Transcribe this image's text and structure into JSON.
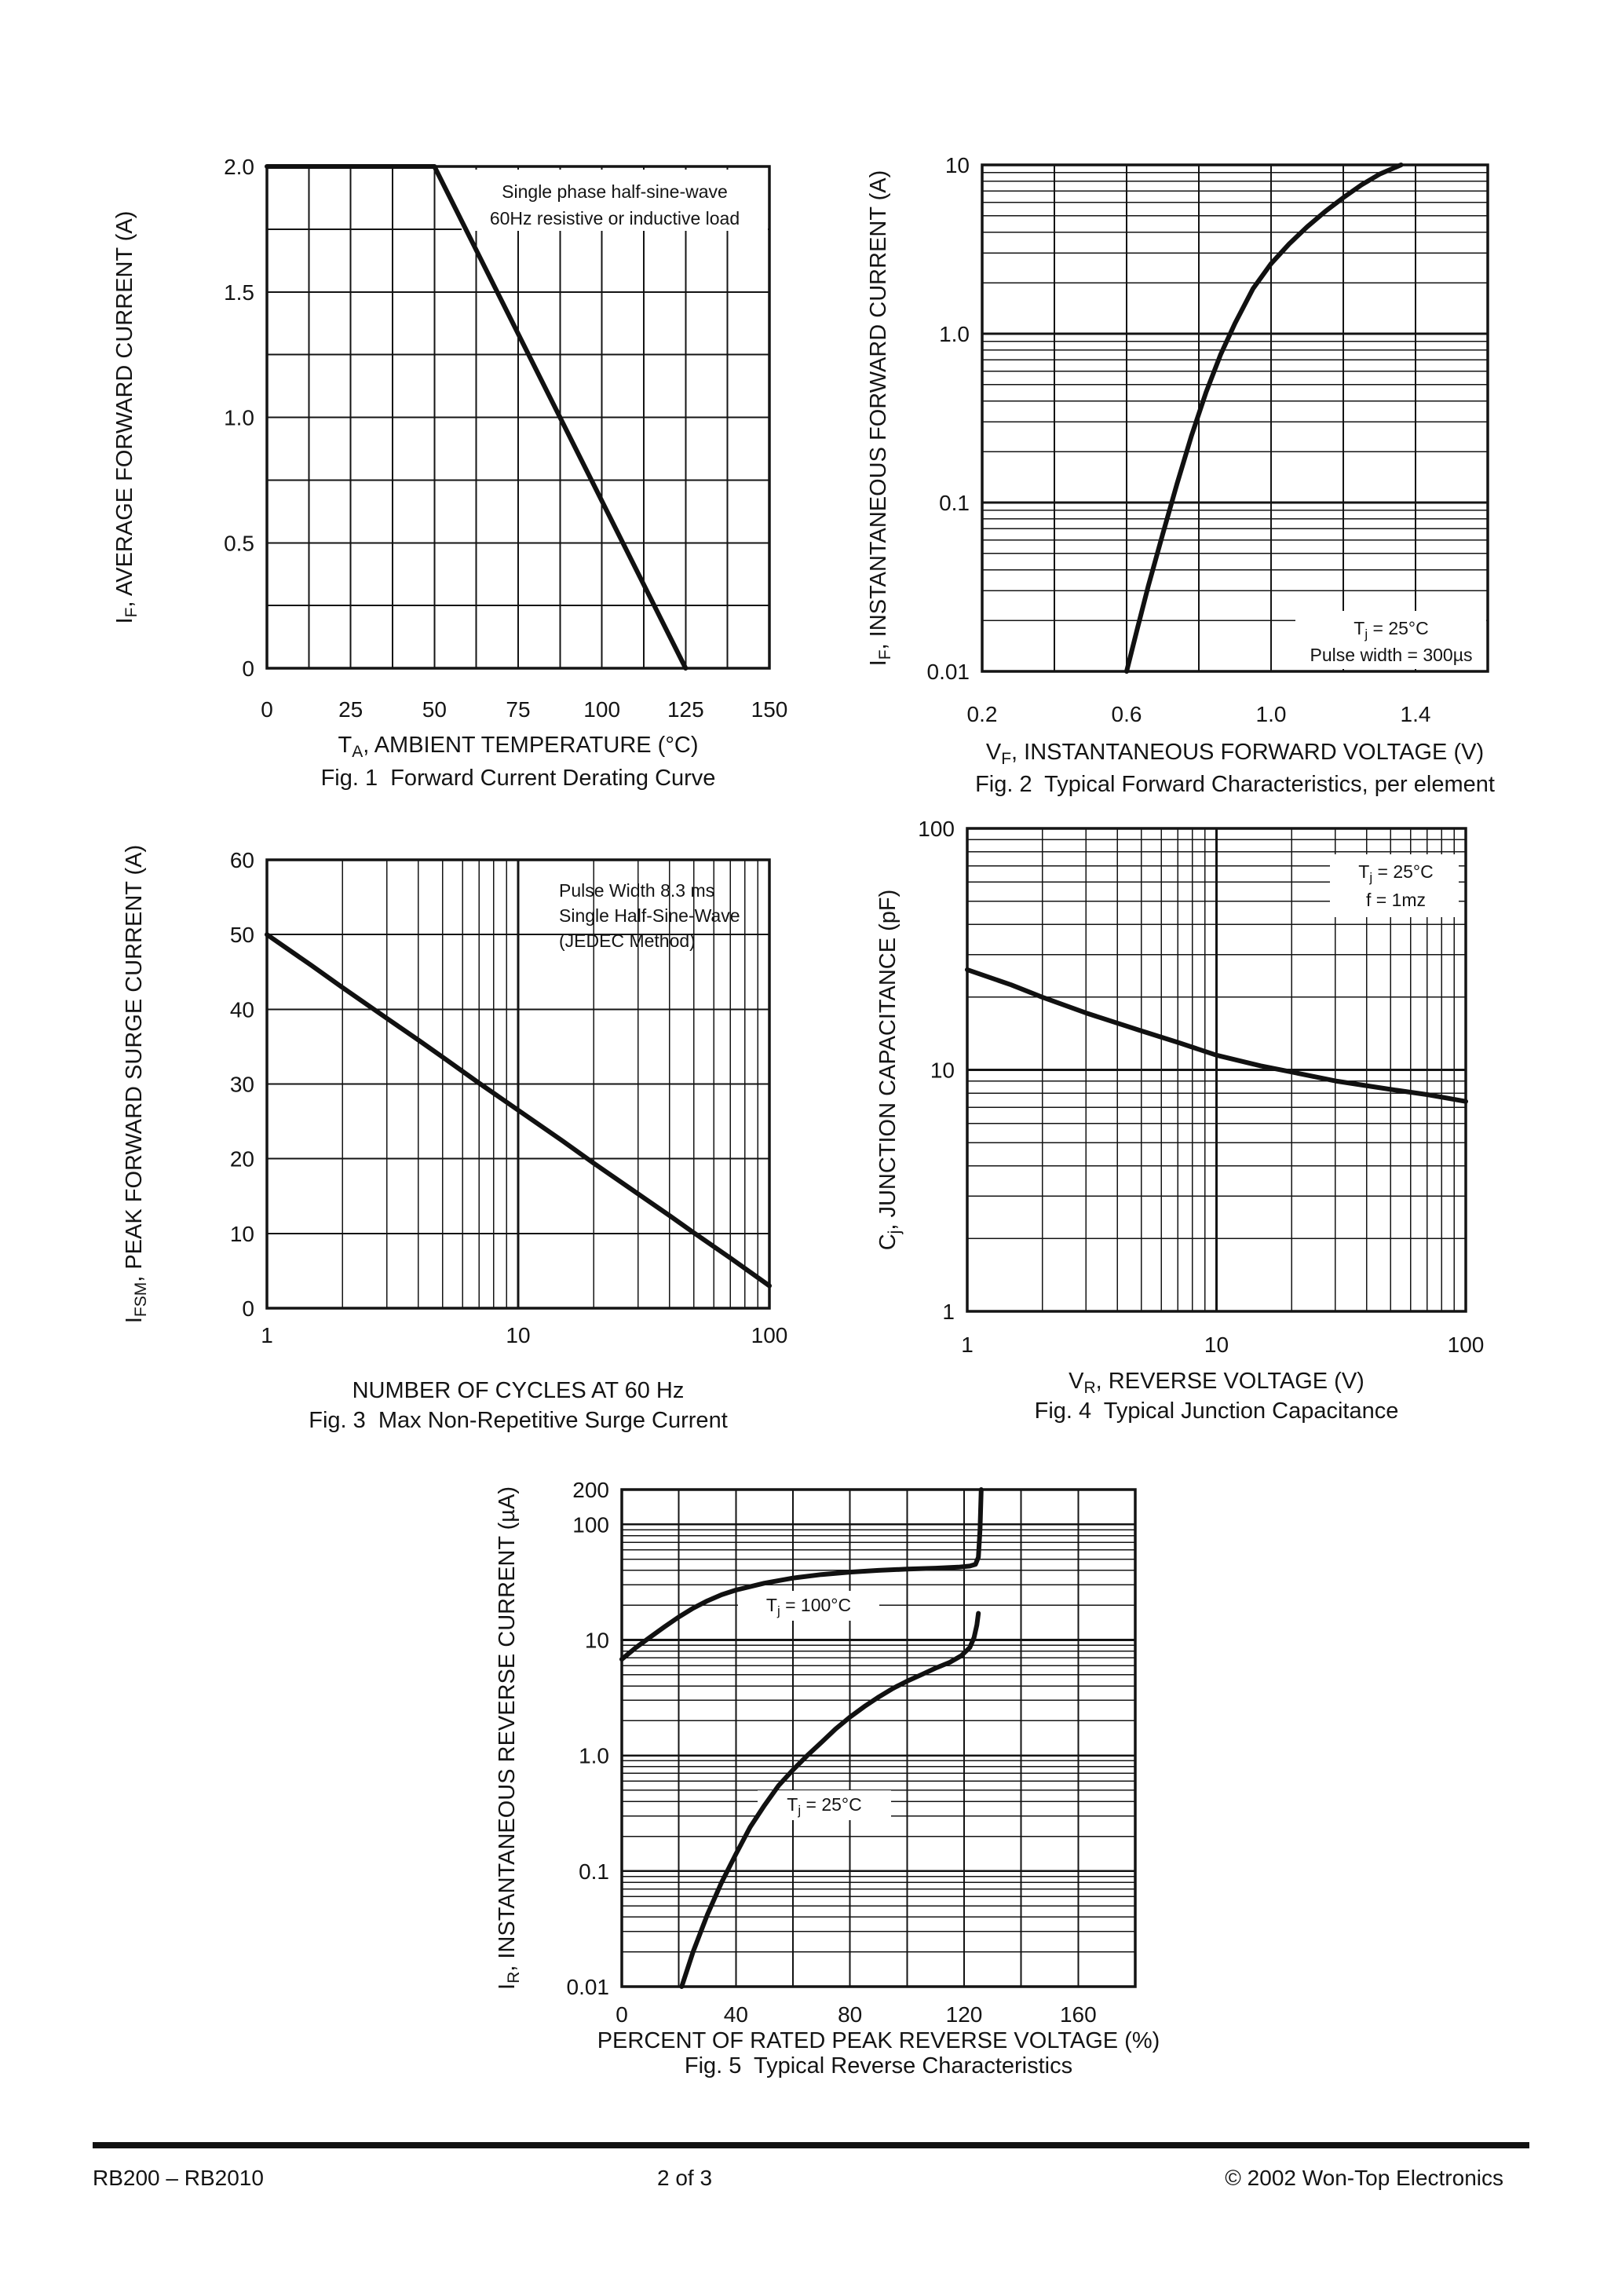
{
  "page": {
    "footer": {
      "left": "RB200 – RB2010",
      "center": "2 of 3",
      "right": "© 2002 Won-Top Electronics"
    }
  },
  "chart_data": [
    {
      "id": "fig1",
      "type": "line",
      "title": "Fig. 1  Forward Current Derating Curve",
      "xlabel": "T_{A}, AMBIENT TEMPERATURE (°C)",
      "ylabel": "I_{F}, AVERAGE FORWARD CURRENT (A)",
      "x": {
        "scale": "linear",
        "min": 0,
        "max": 150,
        "step": 12.5,
        "uniform": true,
        "ticks": [
          {
            "v": 0,
            "label": "0"
          },
          {
            "v": 25,
            "label": "25"
          },
          {
            "v": 50,
            "label": "50"
          },
          {
            "v": 75,
            "label": "75"
          },
          {
            "v": 100,
            "label": "100"
          },
          {
            "v": 125,
            "label": "125"
          },
          {
            "v": 150,
            "label": "150"
          }
        ]
      },
      "y": {
        "scale": "linear",
        "min": 0,
        "max": 2,
        "step": 0.25,
        "uniform": true,
        "ticks": [
          {
            "v": 2,
            "label": "2.0"
          },
          {
            "v": 1.5,
            "label": "1.5"
          },
          {
            "v": 1,
            "label": "1.0"
          },
          {
            "v": 0.5,
            "label": "0.5"
          },
          {
            "v": 0,
            "label": "0"
          }
        ]
      },
      "annotations": [
        {
          "lines": [
            "Single phase half-sine-wave",
            "60Hz resistive or inductive load"
          ]
        }
      ],
      "series": [
        {
          "name": "fig1-derating-curve",
          "points": [
            [
              0,
              2
            ],
            [
              50,
              2
            ],
            [
              125,
              0
            ]
          ]
        }
      ]
    },
    {
      "id": "fig2",
      "type": "line",
      "title": "Fig. 2  Typical Forward Characteristics, per element",
      "xlabel": "V_{F}, INSTANTANEOUS FORWARD VOLTAGE (V)",
      "ylabel": "I_{F}, INSTANTANEOUS FORWARD CURRENT (A)",
      "x": {
        "scale": "linear",
        "min": 0.2,
        "max": 1.6,
        "step": 0.2,
        "uniform": true,
        "ticks": [
          {
            "v": 0.2,
            "label": "0.2"
          },
          {
            "v": 0.6,
            "label": "0.6"
          },
          {
            "v": 1.0,
            "label": "1.0"
          },
          {
            "v": 1.4,
            "label": "1.4"
          }
        ]
      },
      "y": {
        "scale": "log",
        "min": 0.01,
        "max": 10,
        "ticks": [
          {
            "v": 10,
            "label": "10"
          },
          {
            "v": 1,
            "label": "1.0"
          },
          {
            "v": 0.1,
            "label": "0.1"
          },
          {
            "v": 0.01,
            "label": "0.01"
          }
        ]
      },
      "annotations": [
        {
          "lines": [
            "T_{j} = 25°C",
            "Pulse width = 300µs"
          ]
        }
      ],
      "series": [
        {
          "name": "fig2-forward-characteristic-curve",
          "points": [
            [
              0.6,
              0.01
            ],
            [
              0.63,
              0.018
            ],
            [
              0.66,
              0.032
            ],
            [
              0.7,
              0.065
            ],
            [
              0.74,
              0.13
            ],
            [
              0.78,
              0.25
            ],
            [
              0.82,
              0.45
            ],
            [
              0.86,
              0.75
            ],
            [
              0.9,
              1.15
            ],
            [
              0.95,
              1.85
            ],
            [
              1.0,
              2.6
            ],
            [
              1.05,
              3.4
            ],
            [
              1.1,
              4.3
            ],
            [
              1.15,
              5.3
            ],
            [
              1.2,
              6.4
            ],
            [
              1.25,
              7.6
            ],
            [
              1.3,
              8.8
            ],
            [
              1.36,
              10
            ]
          ]
        }
      ]
    },
    {
      "id": "fig3",
      "type": "line",
      "title": "Fig. 3  Max Non-Repetitive Surge Current",
      "xlabel": "NUMBER OF CYCLES AT 60 Hz",
      "ylabel": "I_{FSM}, PEAK FORWARD SURGE CURRENT (A)",
      "x": {
        "scale": "log",
        "min": 1,
        "max": 100,
        "ticks": [
          {
            "v": 1,
            "label": "1"
          },
          {
            "v": 10,
            "label": "10"
          },
          {
            "v": 100,
            "label": "100"
          }
        ]
      },
      "y": {
        "scale": "linear",
        "min": 0,
        "max": 60,
        "step": 10,
        "uniform": true,
        "ticks": [
          {
            "v": 60,
            "label": "60"
          },
          {
            "v": 50,
            "label": "50"
          },
          {
            "v": 40,
            "label": "40"
          },
          {
            "v": 30,
            "label": "30"
          },
          {
            "v": 20,
            "label": "20"
          },
          {
            "v": 10,
            "label": "10"
          },
          {
            "v": 0,
            "label": "0"
          }
        ]
      },
      "annotations": [
        {
          "lines": [
            "Pulse Width 8.3 ms",
            "Single Half-Sine-Wave",
            "(JEDEC Method)"
          ],
          "nobox": true
        }
      ],
      "series": [
        {
          "name": "fig3-surge-current-curve",
          "points": [
            [
              1,
              50
            ],
            [
              1.5,
              45.9
            ],
            [
              2,
              42.9
            ],
            [
              3,
              38.8
            ],
            [
              4,
              35.9
            ],
            [
              5,
              33.6
            ],
            [
              7,
              30.1
            ],
            [
              10,
              26.5
            ],
            [
              15,
              22.4
            ],
            [
              20,
              19.4
            ],
            [
              30,
              15.3
            ],
            [
              40,
              12.4
            ],
            [
              50,
              10.1
            ],
            [
              70,
              6.7
            ],
            [
              100,
              3.0
            ]
          ]
        }
      ]
    },
    {
      "id": "fig4",
      "type": "line",
      "title": "Fig. 4  Typical Junction Capacitance",
      "xlabel": "V_{R}, REVERSE VOLTAGE (V)",
      "ylabel": "C_{j}, JUNCTION CAPACITANCE (pF)",
      "x": {
        "scale": "log",
        "min": 1,
        "max": 100,
        "ticks": [
          {
            "v": 1,
            "label": "1"
          },
          {
            "v": 10,
            "label": "10"
          },
          {
            "v": 100,
            "label": "100"
          }
        ]
      },
      "y": {
        "scale": "log",
        "min": 1,
        "max": 100,
        "ticks": [
          {
            "v": 100,
            "label": "100"
          },
          {
            "v": 10,
            "label": "10"
          },
          {
            "v": 1,
            "label": "1"
          }
        ]
      },
      "annotations": [
        {
          "lines": [
            "T_{j} = 25°C",
            "f = 1mz"
          ]
        }
      ],
      "series": [
        {
          "name": "fig4-junction-capacitance-curve",
          "points": [
            [
              1,
              26
            ],
            [
              1.5,
              22.5
            ],
            [
              2,
              20
            ],
            [
              3,
              17.2
            ],
            [
              5,
              14.5
            ],
            [
              7,
              13
            ],
            [
              10,
              11.5
            ],
            [
              15,
              10.4
            ],
            [
              20,
              9.8
            ],
            [
              30,
              9.0
            ],
            [
              50,
              8.3
            ],
            [
              70,
              7.9
            ],
            [
              100,
              7.4
            ]
          ]
        }
      ]
    },
    {
      "id": "fig5",
      "type": "line",
      "title": "Fig. 5  Typical Reverse Characteristics",
      "xlabel": "PERCENT OF RATED PEAK REVERSE VOLTAGE (%)",
      "ylabel": "I_{R}, INSTANTANEOUS REVERSE CURRENT (µA)",
      "x": {
        "scale": "linear",
        "min": 0,
        "max": 180,
        "step": 20,
        "uniform": true,
        "ticks": [
          {
            "v": 0,
            "label": "0"
          },
          {
            "v": 40,
            "label": "40"
          },
          {
            "v": 80,
            "label": "80"
          },
          {
            "v": 120,
            "label": "120"
          },
          {
            "v": 160,
            "label": "160"
          }
        ]
      },
      "y": {
        "scale": "log",
        "min": 0.01,
        "max": 200,
        "ticks": [
          {
            "v": 200,
            "label": "200"
          },
          {
            "v": 100,
            "label": "100"
          },
          {
            "v": 10,
            "label": "10"
          },
          {
            "v": 1,
            "label": "1.0"
          },
          {
            "v": 0.1,
            "label": "0.1"
          },
          {
            "v": 0.01,
            "label": "0.01"
          }
        ]
      },
      "annotations": [
        {
          "lines": [
            "T_{j} = 100°C"
          ]
        },
        {
          "lines": [
            "T_{j} = 25°C"
          ]
        }
      ],
      "series": [
        {
          "name": "fig5-reverse-current-100c-curve",
          "points": [
            [
              0,
              6.8
            ],
            [
              5,
              8.6
            ],
            [
              10,
              10.6
            ],
            [
              15,
              13
            ],
            [
              20,
              15.8
            ],
            [
              25,
              18.8
            ],
            [
              30,
              21.8
            ],
            [
              35,
              24.6
            ],
            [
              40,
              27
            ],
            [
              50,
              31
            ],
            [
              60,
              34.3
            ],
            [
              70,
              36.8
            ],
            [
              80,
              38.6
            ],
            [
              90,
              40
            ],
            [
              100,
              41
            ],
            [
              110,
              41.8
            ],
            [
              118,
              42.6
            ],
            [
              122,
              43.6
            ],
            [
              124,
              45
            ],
            [
              125,
              52
            ],
            [
              125.6,
              90
            ],
            [
              126,
              200
            ]
          ]
        },
        {
          "name": "fig5-reverse-current-25c-curve",
          "points": [
            [
              21,
              0.01
            ],
            [
              25,
              0.02
            ],
            [
              30,
              0.042
            ],
            [
              35,
              0.08
            ],
            [
              40,
              0.14
            ],
            [
              45,
              0.24
            ],
            [
              50,
              0.37
            ],
            [
              55,
              0.55
            ],
            [
              60,
              0.75
            ],
            [
              65,
              1.0
            ],
            [
              70,
              1.3
            ],
            [
              75,
              1.7
            ],
            [
              80,
              2.15
            ],
            [
              85,
              2.65
            ],
            [
              90,
              3.2
            ],
            [
              95,
              3.8
            ],
            [
              100,
              4.4
            ],
            [
              105,
              5.0
            ],
            [
              110,
              5.7
            ],
            [
              115,
              6.4
            ],
            [
              119,
              7.3
            ],
            [
              122,
              8.6
            ],
            [
              123.5,
              10.5
            ],
            [
              124.5,
              13.5
            ],
            [
              125,
              17
            ]
          ]
        }
      ]
    }
  ]
}
